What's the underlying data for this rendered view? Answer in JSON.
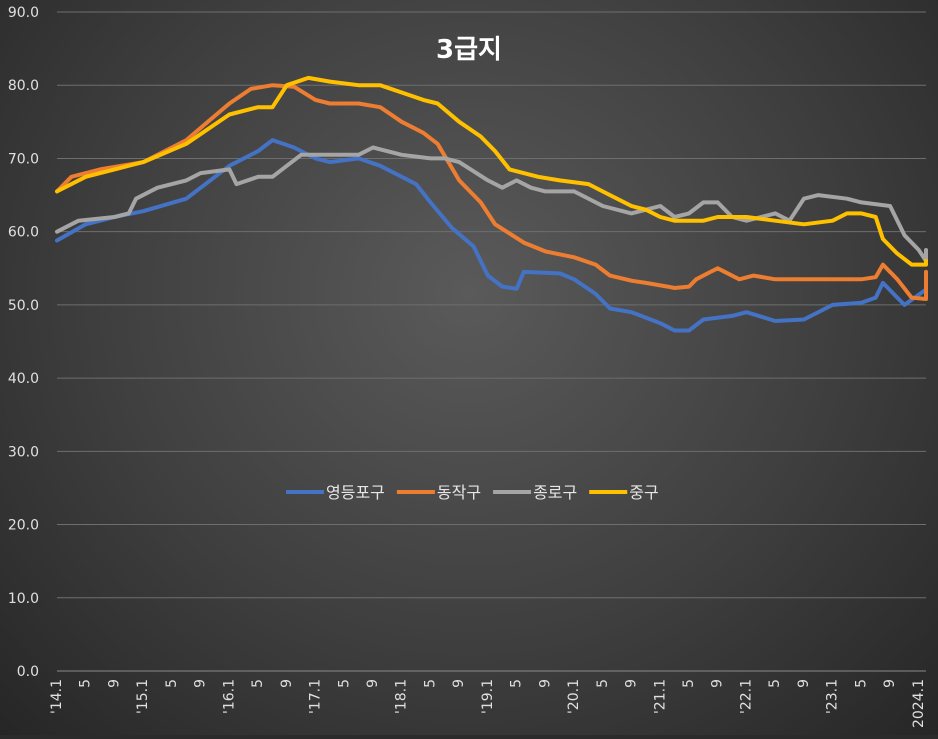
{
  "chart_data": {
    "type": "line",
    "title": "3급지",
    "xlabel": "",
    "ylabel": "",
    "ylim": [
      0,
      90
    ],
    "y_ticks": [
      "0.0",
      "10.0",
      "20.0",
      "30.0",
      "40.0",
      "50.0",
      "60.0",
      "70.0",
      "80.0",
      "90.0"
    ],
    "grid": true,
    "legend_position": "center",
    "x_tick_labels": [
      "'14.1",
      "5",
      "9",
      "'15.1",
      "5",
      "9",
      "'16.1",
      "5",
      "9",
      "'17.1",
      "5",
      "9",
      "'18.1",
      "5",
      "9",
      "'19.1",
      "5",
      "9",
      "'20.1",
      "5",
      "9",
      "'21.1",
      "5",
      "9",
      "'22.1",
      "5",
      "9",
      "'23.1",
      "5",
      "9",
      "2024.1"
    ],
    "x_count": 122,
    "series": [
      {
        "name": "영등포구",
        "color": "#4472c4",
        "points": [
          [
            0,
            58.8
          ],
          [
            4,
            61
          ],
          [
            8,
            62
          ],
          [
            12,
            62.8
          ],
          [
            18,
            64.5
          ],
          [
            24,
            69
          ],
          [
            28,
            71
          ],
          [
            30,
            72.5
          ],
          [
            33,
            71.5
          ],
          [
            36,
            70
          ],
          [
            38,
            69.5
          ],
          [
            42,
            70
          ],
          [
            45,
            69
          ],
          [
            50,
            66.5
          ],
          [
            52,
            64
          ],
          [
            55,
            60.5
          ],
          [
            58,
            58
          ],
          [
            60,
            54
          ],
          [
            62,
            52.5
          ],
          [
            64,
            52.2
          ],
          [
            65,
            54.5
          ],
          [
            70,
            54.3
          ],
          [
            72,
            53.5
          ],
          [
            75,
            51.5
          ],
          [
            77,
            49.5
          ],
          [
            80,
            49
          ],
          [
            84,
            47.5
          ],
          [
            86,
            46.5
          ],
          [
            88,
            46.5
          ],
          [
            90,
            48
          ],
          [
            94,
            48.5
          ],
          [
            96,
            49
          ],
          [
            100,
            47.8
          ],
          [
            104,
            48
          ],
          [
            108,
            50
          ],
          [
            112,
            50.3
          ],
          [
            114,
            51
          ],
          [
            115,
            53
          ],
          [
            117,
            51
          ],
          [
            118,
            50
          ],
          [
            122,
            52.1
          ]
        ]
      },
      {
        "name": "동작구",
        "color": "#ed7d31",
        "points": [
          [
            0,
            65.5
          ],
          [
            2,
            67.5
          ],
          [
            6,
            68.5
          ],
          [
            12,
            69.5
          ],
          [
            18,
            72.5
          ],
          [
            24,
            77.5
          ],
          [
            27,
            79.5
          ],
          [
            30,
            80
          ],
          [
            33,
            79.8
          ],
          [
            36,
            78
          ],
          [
            38,
            77.5
          ],
          [
            42,
            77.5
          ],
          [
            45,
            77
          ],
          [
            48,
            75
          ],
          [
            51,
            73.5
          ],
          [
            53,
            72
          ],
          [
            56,
            67
          ],
          [
            59,
            64
          ],
          [
            61,
            61
          ],
          [
            65,
            58.5
          ],
          [
            68,
            57.3
          ],
          [
            72,
            56.5
          ],
          [
            75,
            55.5
          ],
          [
            77,
            54
          ],
          [
            80,
            53.3
          ],
          [
            82,
            53
          ],
          [
            85,
            52.5
          ],
          [
            86,
            52.3
          ],
          [
            88,
            52.5
          ],
          [
            89,
            53.5
          ],
          [
            91,
            54.5
          ],
          [
            92,
            55
          ],
          [
            95,
            53.5
          ],
          [
            97,
            54
          ],
          [
            100,
            53.5
          ],
          [
            104,
            53.5
          ],
          [
            108,
            53.5
          ],
          [
            112,
            53.5
          ],
          [
            114,
            53.8
          ],
          [
            115,
            55.5
          ],
          [
            117,
            53.5
          ],
          [
            119,
            51
          ],
          [
            122,
            50.8
          ],
          [
            126,
            52
          ],
          [
            130,
            54.5
          ]
        ]
      },
      {
        "name": "종로구",
        "color": "#a5a5a5",
        "points": [
          [
            0,
            60
          ],
          [
            3,
            61.5
          ],
          [
            8,
            62
          ],
          [
            10,
            62.5
          ],
          [
            11,
            64.5
          ],
          [
            14,
            66
          ],
          [
            18,
            67
          ],
          [
            20,
            68
          ],
          [
            24,
            68.5
          ],
          [
            25,
            66.5
          ],
          [
            28,
            67.5
          ],
          [
            30,
            67.5
          ],
          [
            32,
            69
          ],
          [
            34,
            70.5
          ],
          [
            38,
            70.5
          ],
          [
            42,
            70.5
          ],
          [
            44,
            71.5
          ],
          [
            48,
            70.5
          ],
          [
            52,
            70
          ],
          [
            54,
            70
          ],
          [
            56,
            69.5
          ],
          [
            60,
            67
          ],
          [
            62,
            66
          ],
          [
            64,
            67
          ],
          [
            66,
            66
          ],
          [
            68,
            65.5
          ],
          [
            72,
            65.5
          ],
          [
            76,
            63.5
          ],
          [
            80,
            62.5
          ],
          [
            84,
            63.5
          ],
          [
            86,
            62
          ],
          [
            88,
            62.5
          ],
          [
            90,
            64
          ],
          [
            92,
            64
          ],
          [
            94,
            62
          ],
          [
            96,
            61.5
          ],
          [
            100,
            62.5
          ],
          [
            102,
            61.5
          ],
          [
            104,
            64.5
          ],
          [
            106,
            65
          ],
          [
            110,
            64.5
          ],
          [
            112,
            64
          ],
          [
            116,
            63.5
          ],
          [
            118,
            59.5
          ],
          [
            120,
            57.5
          ],
          [
            124,
            56
          ],
          [
            130,
            57.5
          ]
        ]
      },
      {
        "name": "중구",
        "color": "#ffc000",
        "points": [
          [
            0,
            65.5
          ],
          [
            4,
            67.5
          ],
          [
            8,
            68.5
          ],
          [
            12,
            69.5
          ],
          [
            18,
            72
          ],
          [
            24,
            76
          ],
          [
            28,
            77
          ],
          [
            30,
            77
          ],
          [
            32,
            80
          ],
          [
            35,
            81
          ],
          [
            38,
            80.5
          ],
          [
            42,
            80
          ],
          [
            45,
            80
          ],
          [
            48,
            79
          ],
          [
            51,
            78
          ],
          [
            53,
            77.5
          ],
          [
            56,
            75
          ],
          [
            59,
            73
          ],
          [
            61,
            71
          ],
          [
            63,
            68.5
          ],
          [
            67,
            67.5
          ],
          [
            70,
            67
          ],
          [
            74,
            66.5
          ],
          [
            77,
            65
          ],
          [
            80,
            63.5
          ],
          [
            82,
            63
          ],
          [
            84,
            62
          ],
          [
            86,
            61.5
          ],
          [
            88,
            61.5
          ],
          [
            90,
            61.5
          ],
          [
            92,
            62
          ],
          [
            96,
            62
          ],
          [
            100,
            61.5
          ],
          [
            104,
            61
          ],
          [
            108,
            61.5
          ],
          [
            110,
            62.5
          ],
          [
            112,
            62.5
          ],
          [
            114,
            62
          ],
          [
            115,
            59
          ],
          [
            117,
            57
          ],
          [
            119,
            55.5
          ],
          [
            121,
            55.5
          ],
          [
            124,
            55.5
          ],
          [
            128,
            55.8
          ],
          [
            130,
            56
          ]
        ]
      }
    ]
  }
}
